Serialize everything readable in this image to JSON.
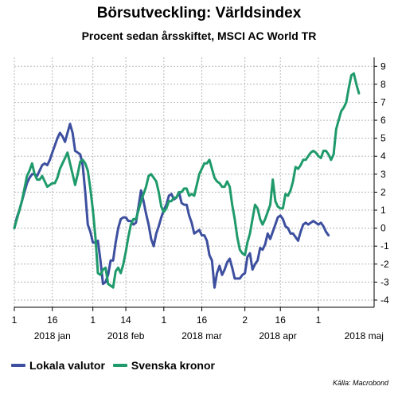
{
  "chart_data": {
    "type": "line",
    "title": "Börsutveckling: Världsindex",
    "subtitle": "Procent sedan årsskiftet, MSCI AC World TR",
    "source": "Källa: Macrobond",
    "x_ticks": [
      "1",
      "16",
      "1",
      "14",
      "1",
      "16",
      "2",
      "16",
      "1"
    ],
    "month_labels": [
      "2018 jan",
      "2018 feb",
      "2018 mar",
      "2018 apr",
      "2018 maj"
    ],
    "y_ticks": [
      "9",
      "8",
      "7",
      "6",
      "5",
      "4",
      "3",
      "2",
      "1",
      "0",
      "-1",
      "-2",
      "-3",
      "-4"
    ],
    "ylim": [
      -4.4,
      9.5
    ],
    "grid": true,
    "legend_position": "bottom-left",
    "series": [
      {
        "name": "Lokala valutor",
        "color": "#3d4f9f",
        "points": [
          [
            "2018-01-01",
            0.0
          ],
          [
            "2018-01-02",
            0.6
          ],
          [
            "2018-01-03",
            1.0
          ],
          [
            "2018-01-04",
            1.5
          ],
          [
            "2018-01-05",
            2.0
          ],
          [
            "2018-01-06",
            2.5
          ],
          [
            "2018-01-07",
            2.8
          ],
          [
            "2018-01-08",
            3.0
          ],
          [
            "2018-01-09",
            3.0
          ],
          [
            "2018-01-10",
            2.9
          ],
          [
            "2018-01-11",
            3.2
          ],
          [
            "2018-01-12",
            3.5
          ],
          [
            "2018-01-13",
            3.6
          ],
          [
            "2018-01-14",
            3.5
          ],
          [
            "2018-01-15",
            3.8
          ],
          [
            "2018-01-16",
            4.2
          ],
          [
            "2018-01-17",
            4.6
          ],
          [
            "2018-01-18",
            5.0
          ],
          [
            "2018-01-19",
            5.3
          ],
          [
            "2018-01-20",
            5.1
          ],
          [
            "2018-01-21",
            4.8
          ],
          [
            "2018-01-22",
            5.3
          ],
          [
            "2018-01-23",
            5.8
          ],
          [
            "2018-01-24",
            5.3
          ],
          [
            "2018-01-25",
            4.3
          ],
          [
            "2018-01-26",
            4.2
          ],
          [
            "2018-01-27",
            4.1
          ],
          [
            "2018-01-28",
            3.5
          ],
          [
            "2018-01-29",
            2.0
          ],
          [
            "2018-01-30",
            0.2
          ],
          [
            "2018-01-31",
            -0.2
          ],
          [
            "2018-02-01",
            -0.8
          ],
          [
            "2018-02-02",
            -0.8
          ],
          [
            "2018-02-03",
            -0.7
          ],
          [
            "2018-02-04",
            -1.8
          ],
          [
            "2018-02-05",
            -3.1
          ],
          [
            "2018-02-06",
            -3.0
          ],
          [
            "2018-02-07",
            -2.6
          ],
          [
            "2018-02-08",
            -1.8
          ],
          [
            "2018-02-09",
            -1.8
          ],
          [
            "2018-02-10",
            -0.8
          ],
          [
            "2018-02-11",
            0.0
          ],
          [
            "2018-02-12",
            0.5
          ],
          [
            "2018-02-13",
            0.6
          ],
          [
            "2018-02-14",
            0.6
          ],
          [
            "2018-02-15",
            0.4
          ],
          [
            "2018-02-16",
            0.4
          ],
          [
            "2018-02-17",
            0.2
          ],
          [
            "2018-02-18",
            0.3
          ],
          [
            "2018-02-19",
            1.2
          ],
          [
            "2018-02-20",
            2.1
          ],
          [
            "2018-02-21",
            1.5
          ],
          [
            "2018-02-22",
            0.8
          ],
          [
            "2018-02-23",
            0.2
          ],
          [
            "2018-02-24",
            -0.6
          ],
          [
            "2018-02-25",
            -1.0
          ],
          [
            "2018-02-26",
            -0.3
          ],
          [
            "2018-02-27",
            0.1
          ],
          [
            "2018-02-28",
            0.6
          ],
          [
            "2018-03-01",
            1.0
          ],
          [
            "2018-03-02",
            1.3
          ],
          [
            "2018-03-03",
            1.8
          ],
          [
            "2018-03-04",
            1.9
          ],
          [
            "2018-03-05",
            1.6
          ],
          [
            "2018-03-06",
            1.7
          ],
          [
            "2018-03-07",
            2.0
          ],
          [
            "2018-03-08",
            1.4
          ],
          [
            "2018-03-09",
            1.3
          ],
          [
            "2018-03-10",
            1.3
          ],
          [
            "2018-03-11",
            0.7
          ],
          [
            "2018-03-12",
            0.3
          ],
          [
            "2018-03-13",
            -0.3
          ],
          [
            "2018-03-14",
            -0.2
          ],
          [
            "2018-03-15",
            -0.1
          ],
          [
            "2018-03-16",
            -0.4
          ],
          [
            "2018-03-17",
            -0.4
          ],
          [
            "2018-03-18",
            -0.7
          ],
          [
            "2018-03-19",
            -1.5
          ],
          [
            "2018-03-20",
            -1.8
          ],
          [
            "2018-03-21",
            -3.3
          ],
          [
            "2018-03-22",
            -2.5
          ],
          [
            "2018-03-23",
            -2.1
          ],
          [
            "2018-03-24",
            -2.6
          ],
          [
            "2018-03-25",
            -2.3
          ],
          [
            "2018-03-26",
            -1.9
          ],
          [
            "2018-03-27",
            -1.7
          ],
          [
            "2018-03-28",
            -2.2
          ],
          [
            "2018-03-29",
            -2.8
          ],
          [
            "2018-03-30",
            -2.8
          ],
          [
            "2018-03-31",
            -2.8
          ],
          [
            "2018-04-01",
            -2.6
          ],
          [
            "2018-04-02",
            -2.5
          ],
          [
            "2018-04-03",
            -1.6
          ],
          [
            "2018-04-04",
            -1.4
          ],
          [
            "2018-04-05",
            -2.3
          ],
          [
            "2018-04-06",
            -2.0
          ],
          [
            "2018-04-07",
            -1.8
          ],
          [
            "2018-04-08",
            -1.1
          ],
          [
            "2018-04-09",
            -1.2
          ],
          [
            "2018-04-10",
            -0.9
          ],
          [
            "2018-04-11",
            -0.3
          ],
          [
            "2018-04-12",
            -0.6
          ],
          [
            "2018-04-13",
            -0.2
          ],
          [
            "2018-04-14",
            0.2
          ],
          [
            "2018-04-15",
            0.6
          ],
          [
            "2018-04-16",
            0.7
          ],
          [
            "2018-04-17",
            0.5
          ],
          [
            "2018-04-18",
            0.1
          ],
          [
            "2018-04-19",
            0.0
          ],
          [
            "2018-04-20",
            -0.3
          ],
          [
            "2018-04-21",
            -0.3
          ],
          [
            "2018-04-22",
            -0.5
          ],
          [
            "2018-04-23",
            -0.7
          ],
          [
            "2018-04-24",
            -0.2
          ],
          [
            "2018-04-25",
            0.2
          ],
          [
            "2018-04-26",
            0.3
          ],
          [
            "2018-04-27",
            0.2
          ],
          [
            "2018-04-28",
            0.3
          ],
          [
            "2018-04-29",
            0.4
          ],
          [
            "2018-04-30",
            0.3
          ],
          [
            "2018-05-01",
            0.2
          ],
          [
            "2018-05-02",
            0.3
          ],
          [
            "2018-05-03",
            0.1
          ],
          [
            "2018-05-04",
            -0.2
          ],
          [
            "2018-05-05",
            -0.4
          ]
        ]
      },
      {
        "name": "Svenska kronor",
        "color": "#1f9a6b",
        "points": [
          [
            "2018-01-01",
            0.0
          ],
          [
            "2018-01-02",
            0.5
          ],
          [
            "2018-01-03",
            1.0
          ],
          [
            "2018-01-04",
            1.5
          ],
          [
            "2018-01-05",
            2.2
          ],
          [
            "2018-01-06",
            2.9
          ],
          [
            "2018-01-07",
            3.2
          ],
          [
            "2018-01-08",
            3.6
          ],
          [
            "2018-01-09",
            3.0
          ],
          [
            "2018-01-10",
            2.7
          ],
          [
            "2018-01-11",
            2.7
          ],
          [
            "2018-01-12",
            2.9
          ],
          [
            "2018-01-13",
            2.6
          ],
          [
            "2018-01-14",
            2.3
          ],
          [
            "2018-01-15",
            2.4
          ],
          [
            "2018-01-16",
            2.5
          ],
          [
            "2018-01-17",
            2.5
          ],
          [
            "2018-01-18",
            2.8
          ],
          [
            "2018-01-19",
            3.3
          ],
          [
            "2018-01-20",
            3.6
          ],
          [
            "2018-01-21",
            3.9
          ],
          [
            "2018-01-22",
            4.2
          ],
          [
            "2018-01-23",
            3.6
          ],
          [
            "2018-01-24",
            3.0
          ],
          [
            "2018-01-25",
            2.4
          ],
          [
            "2018-01-26",
            3.0
          ],
          [
            "2018-01-27",
            3.7
          ],
          [
            "2018-01-28",
            3.8
          ],
          [
            "2018-01-29",
            3.6
          ],
          [
            "2018-01-30",
            3.2
          ],
          [
            "2018-01-31",
            2.2
          ],
          [
            "2018-02-01",
            1.0
          ],
          [
            "2018-02-02",
            -0.5
          ],
          [
            "2018-02-03",
            -2.5
          ],
          [
            "2018-02-04",
            -2.6
          ],
          [
            "2018-02-05",
            -2.3
          ],
          [
            "2018-02-06",
            -2.2
          ],
          [
            "2018-02-07",
            -3.1
          ],
          [
            "2018-02-08",
            -3.2
          ],
          [
            "2018-02-09",
            -3.3
          ],
          [
            "2018-02-10",
            -2.4
          ],
          [
            "2018-02-11",
            -2.2
          ],
          [
            "2018-02-12",
            -2.5
          ],
          [
            "2018-02-13",
            -2.0
          ],
          [
            "2018-02-14",
            -1.3
          ],
          [
            "2018-02-15",
            -0.5
          ],
          [
            "2018-02-16",
            0.2
          ],
          [
            "2018-02-17",
            0.5
          ],
          [
            "2018-02-18",
            0.5
          ],
          [
            "2018-02-19",
            1.0
          ],
          [
            "2018-02-20",
            1.5
          ],
          [
            "2018-02-21",
            1.9
          ],
          [
            "2018-02-22",
            2.3
          ],
          [
            "2018-02-23",
            2.9
          ],
          [
            "2018-02-24",
            3.0
          ],
          [
            "2018-02-25",
            2.8
          ],
          [
            "2018-02-26",
            2.6
          ],
          [
            "2018-02-27",
            2.0
          ],
          [
            "2018-02-28",
            1.2
          ],
          [
            "2018-03-01",
            0.9
          ],
          [
            "2018-03-02",
            1.1
          ],
          [
            "2018-03-03",
            1.5
          ],
          [
            "2018-03-04",
            1.5
          ],
          [
            "2018-03-05",
            1.7
          ],
          [
            "2018-03-06",
            1.7
          ],
          [
            "2018-03-07",
            2.0
          ],
          [
            "2018-03-08",
            2.0
          ],
          [
            "2018-03-09",
            2.2
          ],
          [
            "2018-03-10",
            2.2
          ],
          [
            "2018-03-11",
            1.8
          ],
          [
            "2018-03-12",
            1.9
          ],
          [
            "2018-03-13",
            1.8
          ],
          [
            "2018-03-14",
            2.4
          ],
          [
            "2018-03-15",
            3.0
          ],
          [
            "2018-03-16",
            3.3
          ],
          [
            "2018-03-17",
            3.6
          ],
          [
            "2018-03-18",
            3.6
          ],
          [
            "2018-03-19",
            3.8
          ],
          [
            "2018-03-20",
            3.3
          ],
          [
            "2018-03-21",
            2.8
          ],
          [
            "2018-03-22",
            2.6
          ],
          [
            "2018-03-23",
            2.5
          ],
          [
            "2018-03-24",
            2.3
          ],
          [
            "2018-03-25",
            2.3
          ],
          [
            "2018-03-26",
            2.6
          ],
          [
            "2018-03-27",
            2.3
          ],
          [
            "2018-03-28",
            1.3
          ],
          [
            "2018-03-29",
            0.5
          ],
          [
            "2018-03-30",
            -0.5
          ],
          [
            "2018-03-31",
            -1.2
          ],
          [
            "2018-04-01",
            -1.4
          ],
          [
            "2018-04-02",
            -1.5
          ],
          [
            "2018-04-03",
            -0.8
          ],
          [
            "2018-04-04",
            -0.3
          ],
          [
            "2018-04-05",
            0.5
          ],
          [
            "2018-04-06",
            1.3
          ],
          [
            "2018-04-07",
            1.1
          ],
          [
            "2018-04-08",
            0.5
          ],
          [
            "2018-04-09",
            0.2
          ],
          [
            "2018-04-10",
            0.5
          ],
          [
            "2018-04-11",
            0.9
          ],
          [
            "2018-04-12",
            1.3
          ],
          [
            "2018-04-13",
            2.7
          ],
          [
            "2018-04-14",
            1.5
          ],
          [
            "2018-04-15",
            1.2
          ],
          [
            "2018-04-16",
            1.1
          ],
          [
            "2018-04-17",
            1.1
          ],
          [
            "2018-04-18",
            1.9
          ],
          [
            "2018-04-19",
            1.8
          ],
          [
            "2018-04-20",
            2.1
          ],
          [
            "2018-04-21",
            2.6
          ],
          [
            "2018-04-22",
            3.4
          ],
          [
            "2018-04-23",
            3.3
          ],
          [
            "2018-04-24",
            3.5
          ],
          [
            "2018-04-25",
            3.8
          ],
          [
            "2018-04-26",
            3.8
          ],
          [
            "2018-04-27",
            4.0
          ],
          [
            "2018-04-28",
            4.2
          ],
          [
            "2018-04-29",
            4.3
          ],
          [
            "2018-04-30",
            4.2
          ],
          [
            "2018-05-01",
            4.0
          ],
          [
            "2018-05-02",
            3.9
          ],
          [
            "2018-05-03",
            4.3
          ],
          [
            "2018-05-04",
            4.3
          ],
          [
            "2018-05-05",
            4.1
          ],
          [
            "2018-05-06",
            3.8
          ],
          [
            "2018-05-07",
            4.1
          ],
          [
            "2018-05-08",
            5.5
          ],
          [
            "2018-05-09",
            6.0
          ],
          [
            "2018-05-10",
            6.5
          ],
          [
            "2018-05-11",
            6.7
          ],
          [
            "2018-05-12",
            7.0
          ],
          [
            "2018-05-13",
            7.8
          ],
          [
            "2018-05-14",
            8.5
          ],
          [
            "2018-05-15",
            8.6
          ],
          [
            "2018-05-16",
            8.0
          ],
          [
            "2018-05-17",
            7.5
          ]
        ]
      }
    ]
  }
}
